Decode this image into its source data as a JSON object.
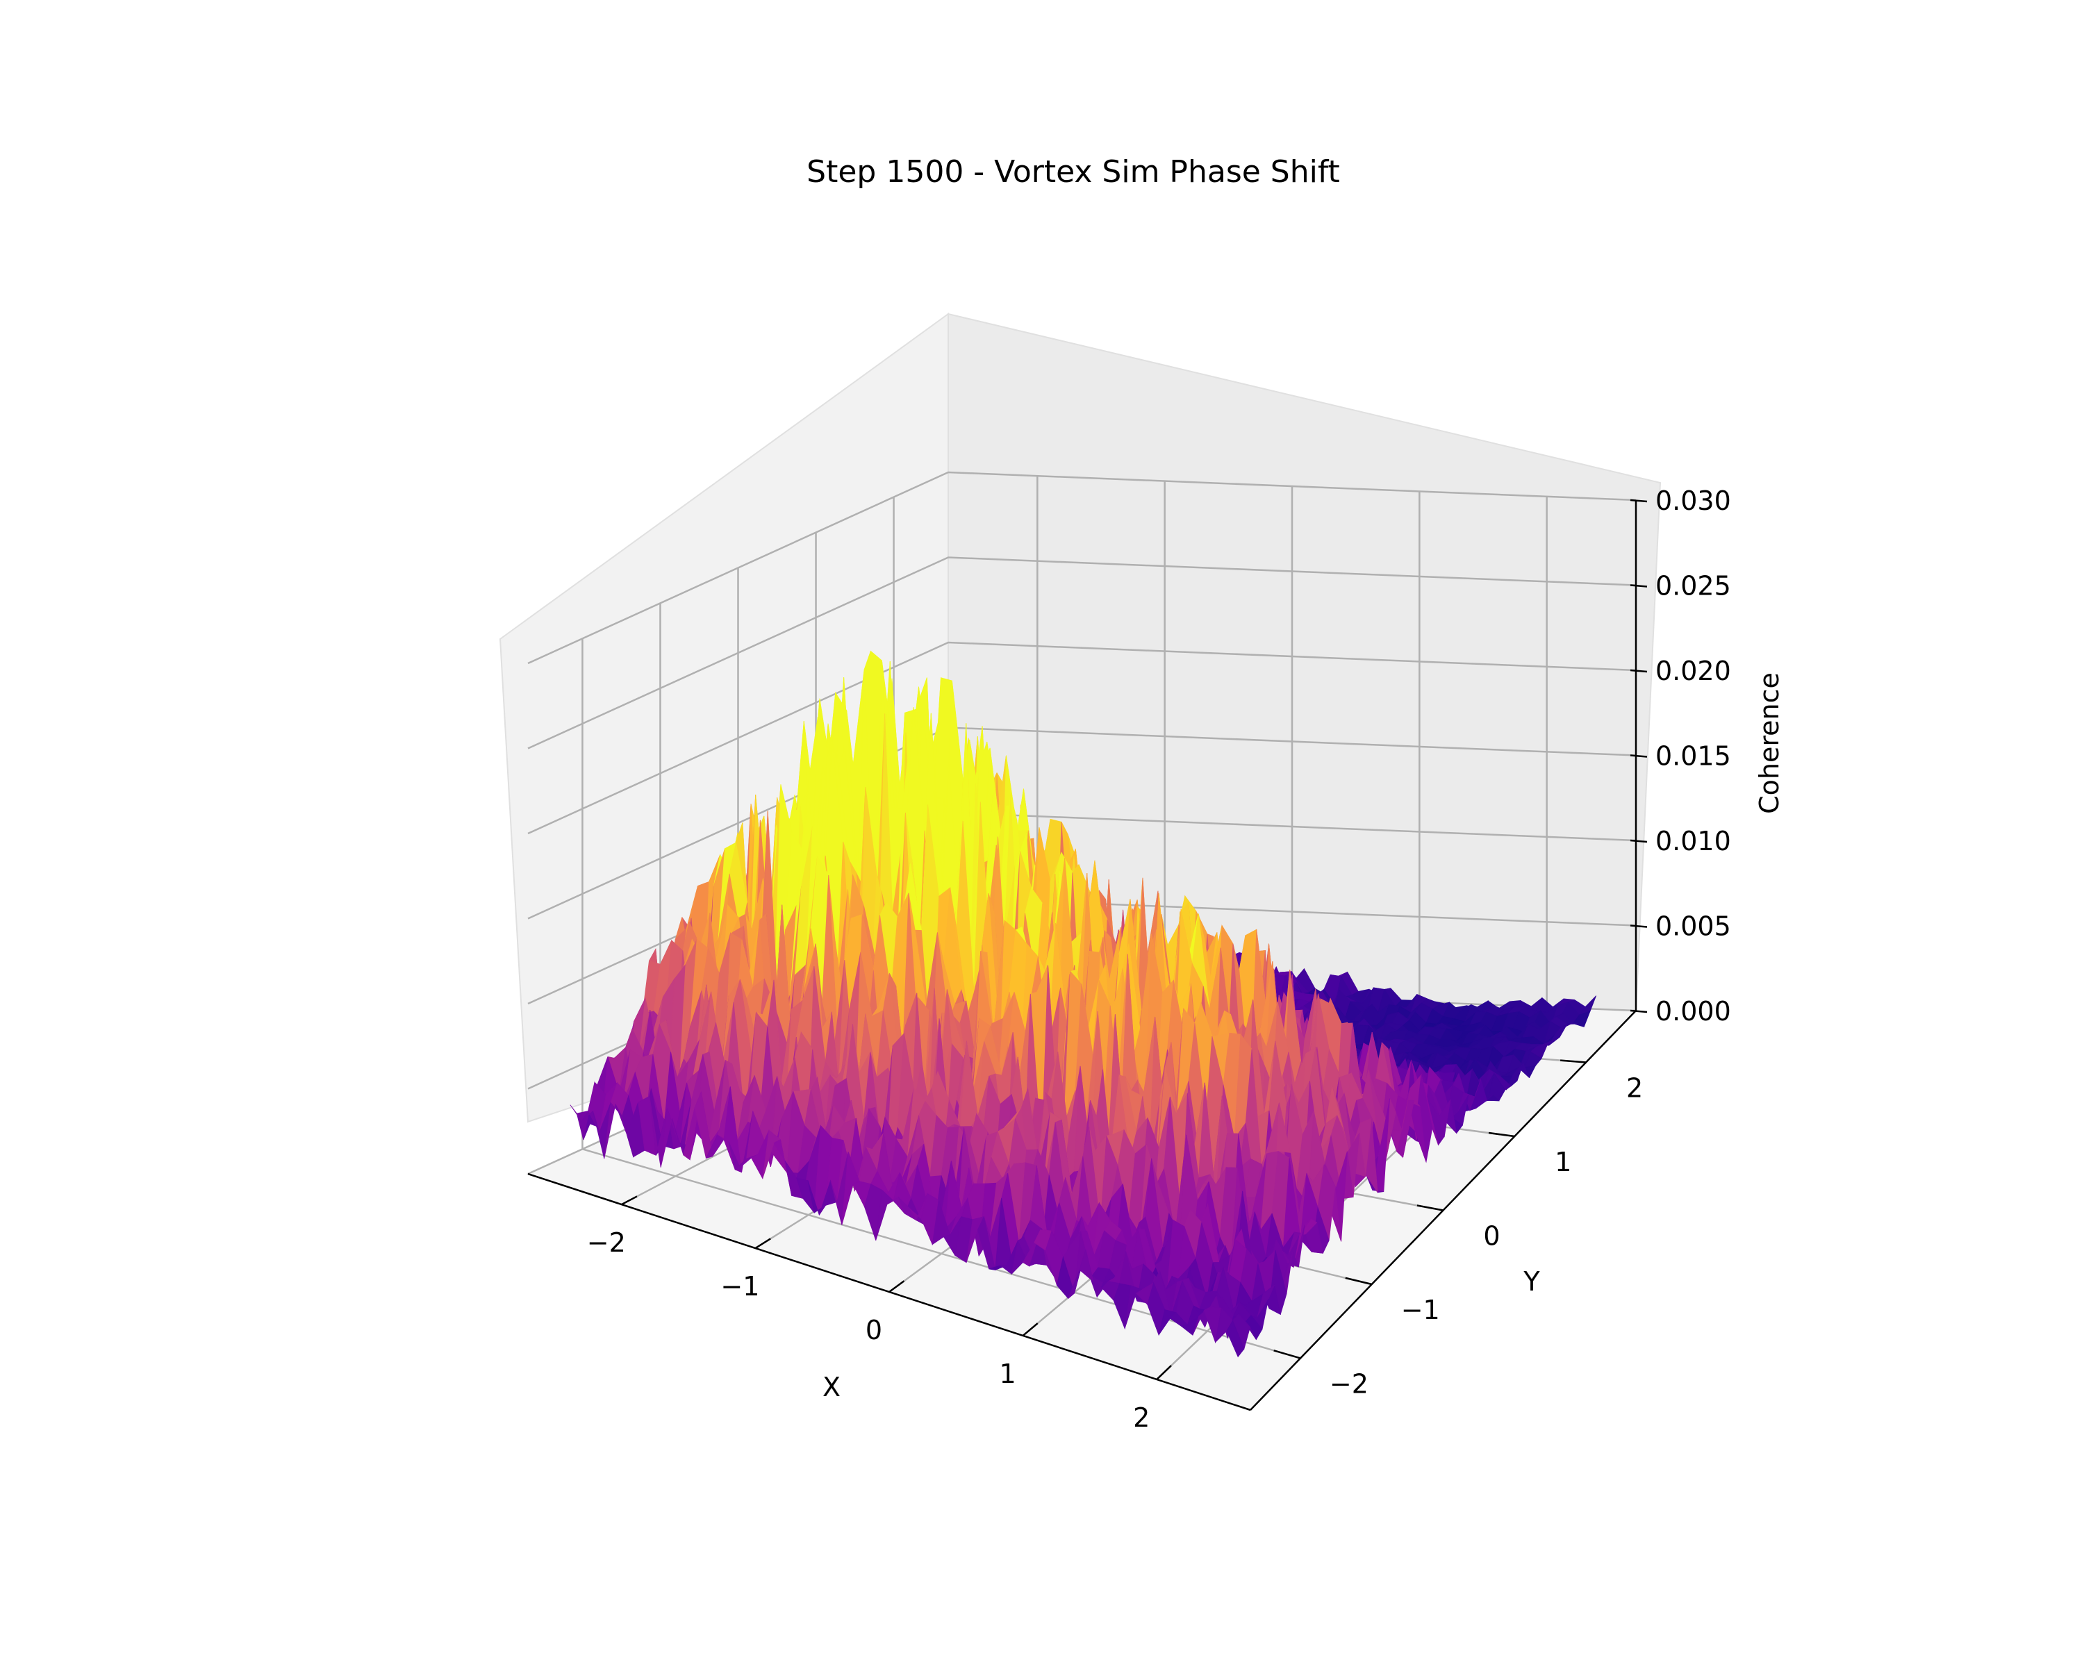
{
  "chart_data": {
    "type": "surface3d",
    "title": "Step 1500 - Vortex Sim Phase Shift",
    "xlabel": "X",
    "ylabel": "Y",
    "zlabel": "Coherence",
    "xlim": [
      -2.7,
      2.7
    ],
    "ylim": [
      -2.7,
      2.7
    ],
    "zlim": [
      0,
      0.03
    ],
    "x_ticks": [
      -2,
      -1,
      0,
      1,
      2
    ],
    "y_ticks": [
      -2,
      -1,
      0,
      1,
      2
    ],
    "z_ticks": [
      0.0,
      0.005,
      0.01,
      0.015,
      0.02,
      0.025,
      0.03
    ],
    "x_tick_labels": [
      "−2",
      "−1",
      "0",
      "1",
      "2"
    ],
    "y_tick_labels": [
      "−2",
      "−1",
      "0",
      "1",
      "2"
    ],
    "z_tick_labels": [
      "0.000",
      "0.005",
      "0.010",
      "0.015",
      "0.020",
      "0.025",
      "0.030"
    ],
    "colormap": "plasma",
    "grid": true,
    "surface_grid": {
      "x_range": [
        -2.5,
        2.5
      ],
      "y_range": [
        -2.5,
        2.5
      ],
      "n": 60
    },
    "surface_description_values": {
      "peak_regions": [
        {
          "x": -1.5,
          "y": -1.0,
          "z": 0.02
        },
        {
          "x": -1.0,
          "y": 0.0,
          "z": 0.017
        },
        {
          "x": 0.5,
          "y": -1.0,
          "z": 0.012
        },
        {
          "x": 1.5,
          "y": -0.5,
          "z": 0.011
        }
      ],
      "trough_region": {
        "x": 1.5,
        "y": 2.0,
        "z": 0.004
      }
    }
  }
}
